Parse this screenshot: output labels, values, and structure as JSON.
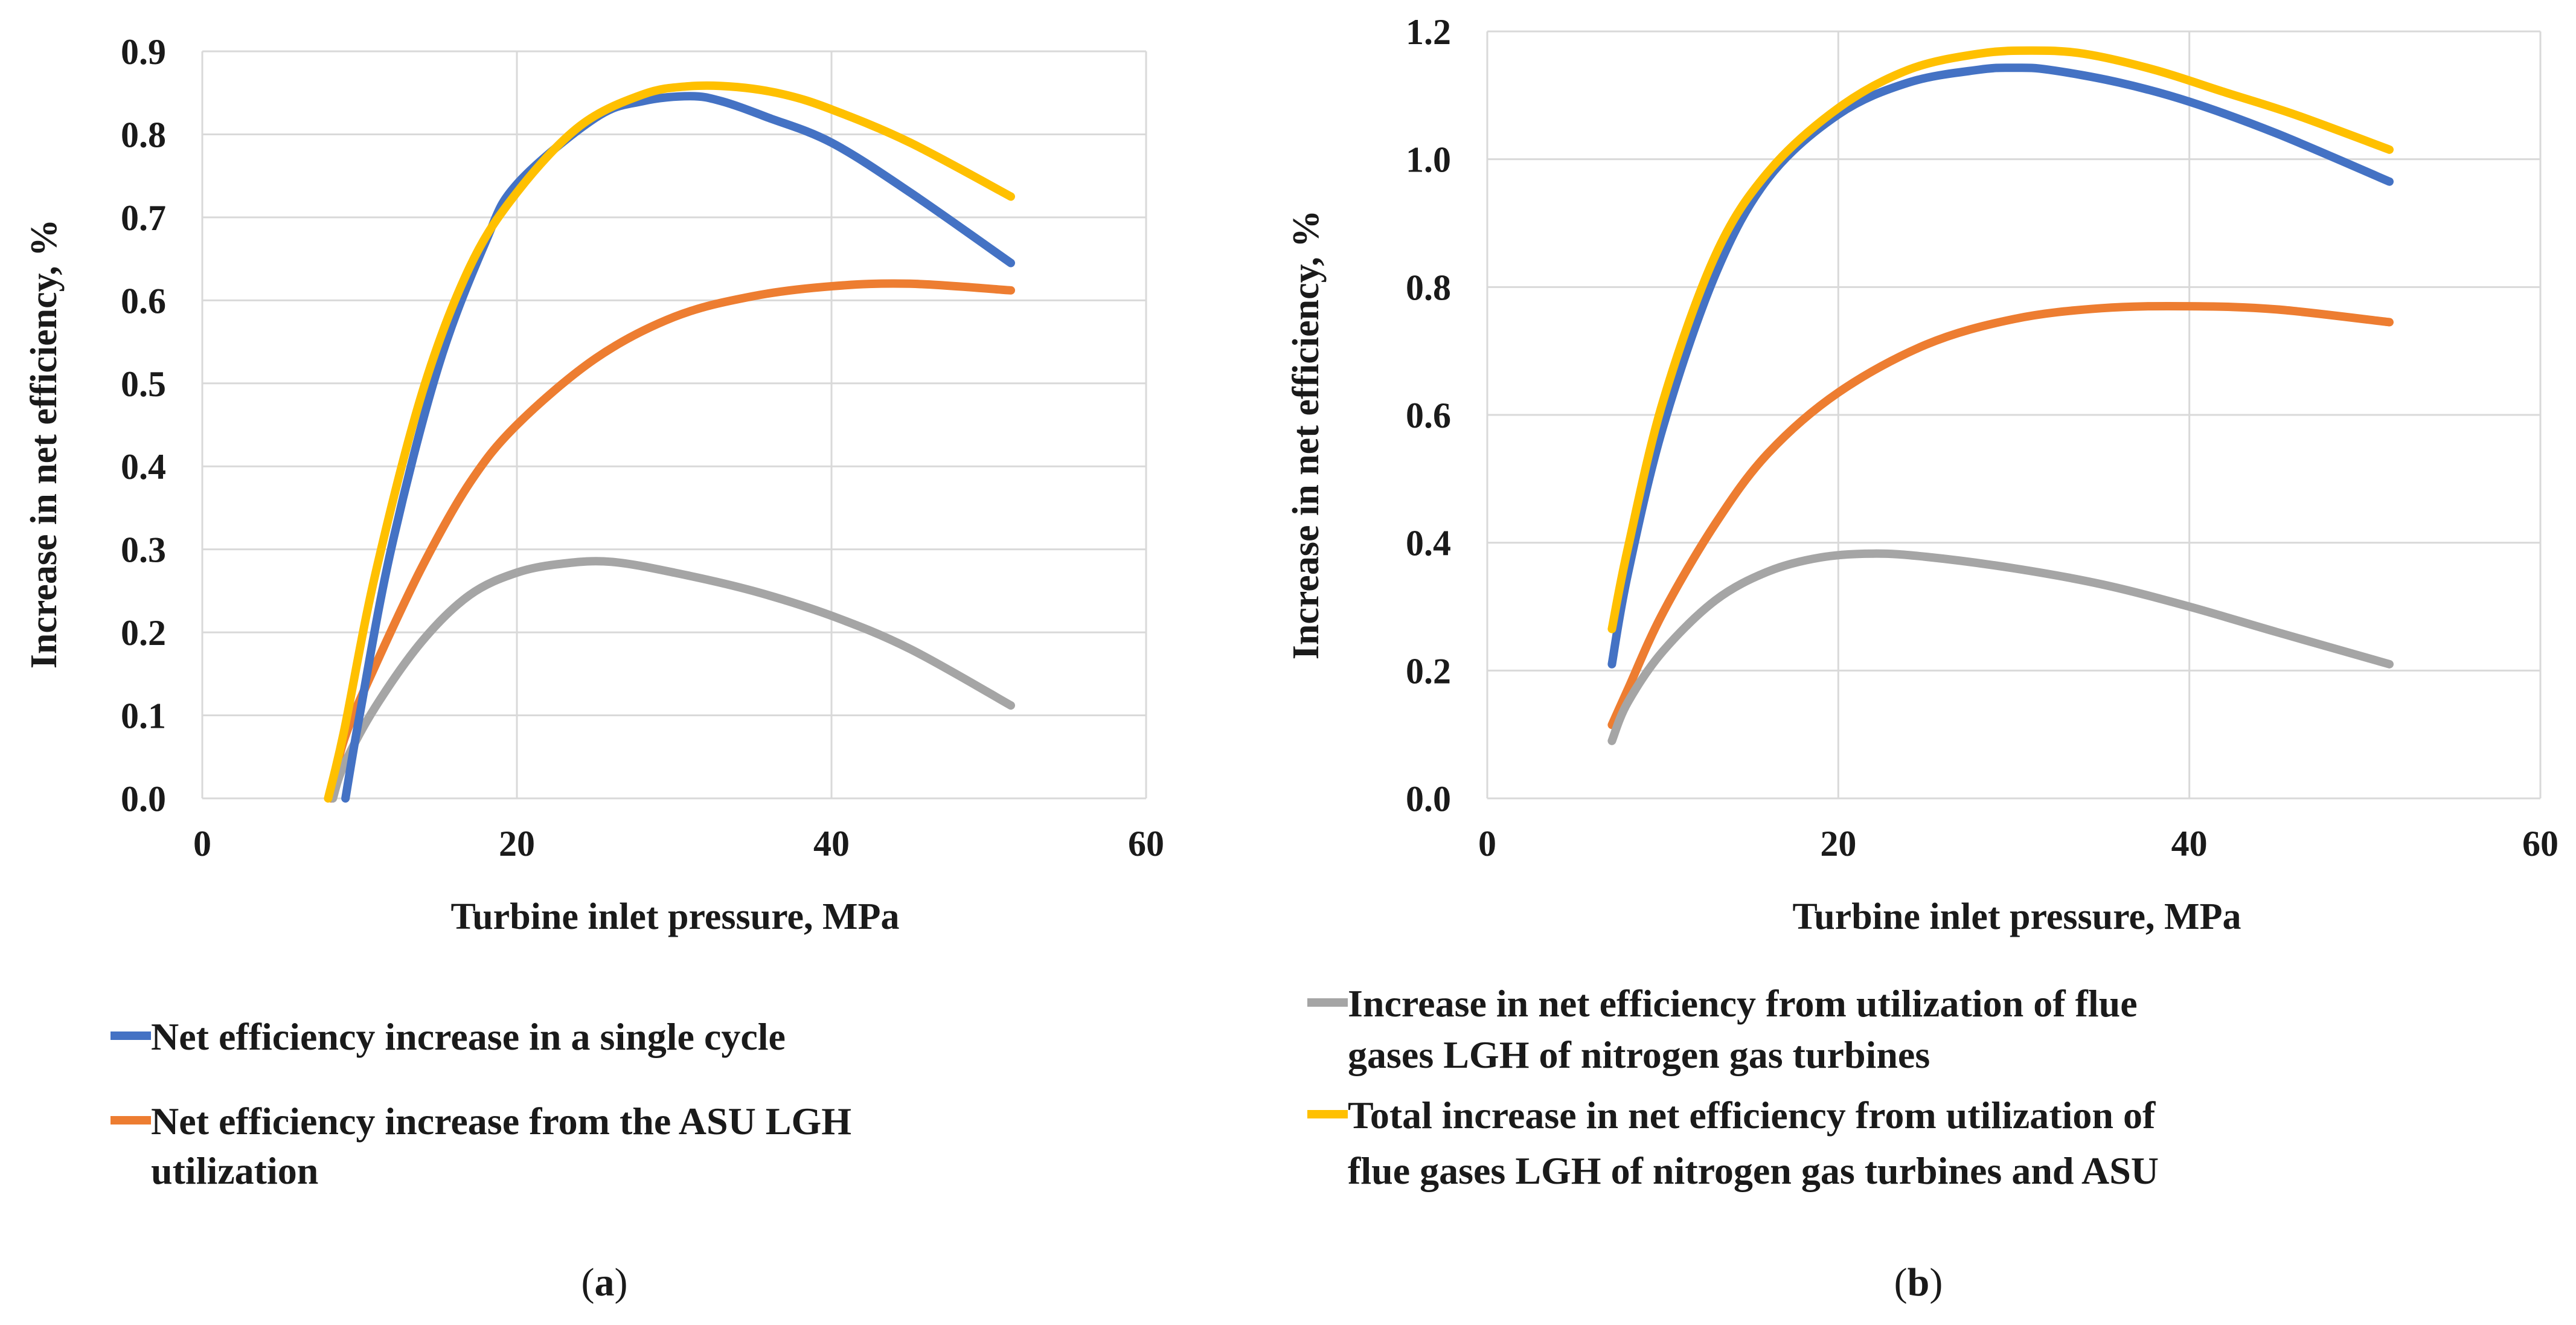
{
  "colors": {
    "blue": "#4472C4",
    "orange": "#ED7D31",
    "gray": "#A5A5A5",
    "yellow": "#FFC000",
    "grid": "#D9D9D9"
  },
  "chart_data": [
    {
      "id": "a",
      "type": "line",
      "xlabel": "Turbine inlet pressure, MPa",
      "ylabel": "Increase in net efficiency, %",
      "xlim": [
        0,
        60
      ],
      "ylim": [
        0,
        0.9
      ],
      "xticks": [
        0,
        20,
        40,
        60
      ],
      "yticks": [
        0.0,
        0.1,
        0.2,
        0.3,
        0.4,
        0.5,
        0.6,
        0.7,
        0.8,
        0.9
      ],
      "ytick_labels": [
        "0.0",
        "0.1",
        "0.2",
        "0.3",
        "0.4",
        "0.5",
        "0.6",
        "0.7",
        "0.8",
        "0.9"
      ],
      "xtick_labels": [
        "0",
        "20",
        "40",
        "60"
      ],
      "caption": "a",
      "series": [
        {
          "name": "Net efficiency increase in a single cycle",
          "color": "#4472C4",
          "x": [
            9.1,
            10,
            12,
            15,
            18,
            20,
            25,
            28,
            31,
            33,
            36,
            40,
            45,
            51.4
          ],
          "y": [
            0.0,
            0.1,
            0.3,
            0.52,
            0.67,
            0.74,
            0.82,
            0.84,
            0.846,
            0.84,
            0.82,
            0.79,
            0.73,
            0.645
          ]
        },
        {
          "name": "Net efficiency increase from the ASU LGH utilization",
          "color": "#ED7D31",
          "x": [
            8.2,
            9,
            11,
            14,
            17,
            20,
            25,
            30,
            35,
            40,
            45,
            51.4
          ],
          "y": [
            0.0,
            0.07,
            0.16,
            0.28,
            0.38,
            0.45,
            0.53,
            0.58,
            0.605,
            0.617,
            0.62,
            0.612
          ]
        },
        {
          "name": "Increase in net efficiency from utilization of flue gases LGH of nitrogen gas turbines",
          "color": "#A5A5A5",
          "x": [
            8.3,
            9,
            11,
            14,
            17,
            20,
            23,
            26,
            30,
            35,
            40,
            45,
            51.4
          ],
          "y": [
            0.0,
            0.04,
            0.11,
            0.19,
            0.245,
            0.272,
            0.283,
            0.285,
            0.272,
            0.25,
            0.22,
            0.18,
            0.112
          ]
        },
        {
          "name": "Total increase in net efficiency from utilization of flue gases LGH of nitrogen gas turbines and ASU",
          "color": "#FFC000",
          "x": [
            8.0,
            9,
            11,
            14,
            17,
            20,
            24,
            28,
            31,
            34,
            37,
            40,
            45,
            51.4
          ],
          "y": [
            0.0,
            0.08,
            0.27,
            0.49,
            0.64,
            0.73,
            0.81,
            0.848,
            0.858,
            0.857,
            0.848,
            0.83,
            0.79,
            0.725
          ]
        }
      ]
    },
    {
      "id": "b",
      "type": "line",
      "xlabel": "Turbine inlet pressure, MPa",
      "ylabel": "Increase in net efficiency, %",
      "xlim": [
        0,
        60
      ],
      "ylim": [
        0,
        1.2
      ],
      "xticks": [
        0,
        20,
        40,
        60
      ],
      "yticks": [
        0.0,
        0.2,
        0.4,
        0.6,
        0.8,
        1.0,
        1.2
      ],
      "ytick_labels": [
        "0.0",
        "0.2",
        "0.4",
        "0.6",
        "0.8",
        "1.0",
        "1.2"
      ],
      "xtick_labels": [
        "0",
        "20",
        "40",
        "60"
      ],
      "caption": "b",
      "series": [
        {
          "name": "Net efficiency increase in a single cycle",
          "color": "#4472C4",
          "x": [
            7.1,
            8,
            10,
            13,
            16,
            20,
            24,
            28,
            30,
            32,
            36,
            40,
            45,
            51.4
          ],
          "y": [
            0.21,
            0.35,
            0.58,
            0.82,
            0.97,
            1.07,
            1.12,
            1.14,
            1.143,
            1.14,
            1.12,
            1.09,
            1.04,
            0.965
          ]
        },
        {
          "name": "Net efficiency increase from the ASU LGH utilization",
          "color": "#ED7D31",
          "x": [
            7.1,
            8,
            10,
            13,
            16,
            20,
            25,
            30,
            35,
            40,
            45,
            51.4
          ],
          "y": [
            0.115,
            0.17,
            0.29,
            0.43,
            0.54,
            0.635,
            0.71,
            0.75,
            0.767,
            0.77,
            0.765,
            0.745
          ]
        },
        {
          "name": "Increase in net efficiency from utilization of flue gases LGH of nitrogen gas turbines",
          "color": "#A5A5A5",
          "x": [
            7.1,
            8,
            10,
            13,
            16,
            19,
            22,
            25,
            30,
            35,
            40,
            45,
            51.4
          ],
          "y": [
            0.09,
            0.15,
            0.23,
            0.31,
            0.355,
            0.377,
            0.383,
            0.378,
            0.36,
            0.335,
            0.3,
            0.26,
            0.21
          ]
        },
        {
          "name": "Total increase in net efficiency from utilization of flue gases LGH of nitrogen gas turbines and ASU",
          "color": "#FFC000",
          "x": [
            7.1,
            8,
            10,
            13,
            16,
            20,
            24,
            28,
            31,
            34,
            38,
            42,
            46,
            51.4
          ],
          "y": [
            0.265,
            0.39,
            0.62,
            0.85,
            0.98,
            1.08,
            1.14,
            1.165,
            1.17,
            1.165,
            1.14,
            1.105,
            1.07,
            1.015
          ]
        }
      ]
    }
  ],
  "legend": {
    "blue": "Net efficiency increase in a single cycle",
    "orange_line1": "Net efficiency increase from the ASU LGH",
    "orange_line2": "utilization",
    "gray_line1": "Increase in net efficiency from utilization of flue",
    "gray_line2": "gases LGH of nitrogen gas turbines",
    "yellow_line1": "Total increase in net efficiency from utilization of",
    "yellow_line2": "flue gases LGH of nitrogen gas turbines and ASU"
  },
  "captions": {
    "a": "a",
    "b": "b",
    "open": "(",
    "close": ")"
  }
}
